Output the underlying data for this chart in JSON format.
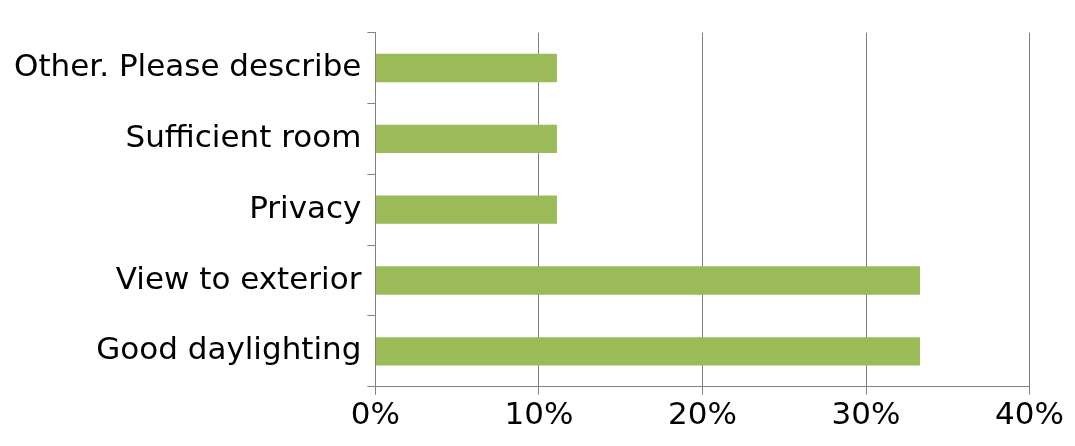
{
  "chart_data": {
    "type": "bar",
    "orientation": "horizontal",
    "categories": [
      "Other. Please describe",
      "Sufficient room",
      "Privacy",
      "View to exterior",
      "Good daylighting"
    ],
    "values": [
      11.1,
      11.1,
      11.1,
      33.3,
      33.3
    ],
    "color": "#9bbb59",
    "xlim": [
      0,
      40
    ],
    "xticks": [
      {
        "value": 0,
        "label": "0%"
      },
      {
        "value": 10,
        "label": "10%"
      },
      {
        "value": 20,
        "label": "20%"
      },
      {
        "value": 30,
        "label": "30%"
      },
      {
        "value": 40,
        "label": "40%"
      }
    ],
    "grid": "x",
    "legend": false
  }
}
